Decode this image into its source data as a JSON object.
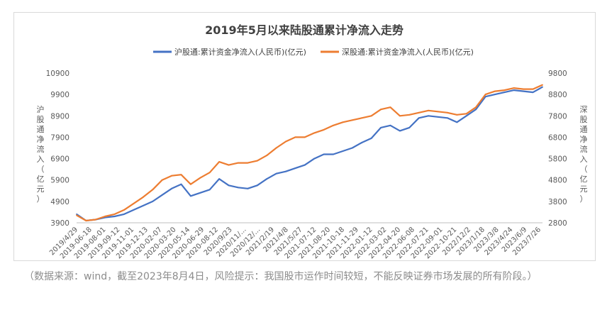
{
  "chart_data": {
    "type": "line",
    "title": "2019年5月以来陆股通累计净流入走势",
    "y_left_label": "沪股通净流入（亿元）",
    "y_right_label": "深股通净流入（亿元）",
    "y_left_ticks": [
      3900,
      4900,
      5900,
      6900,
      7900,
      8900,
      9900,
      10900
    ],
    "y_right_ticks": [
      2800,
      3800,
      4800,
      5800,
      6800,
      7800,
      8800,
      9800
    ],
    "y_left_range": [
      3900,
      10900
    ],
    "y_right_range": [
      2800,
      9800
    ],
    "x_tick_labels": [
      "2019/4/29",
      "2019-06-18",
      "2019-08-01",
      "2019-09-12",
      "2019-11-01",
      "2019-12-13",
      "2020-02-07",
      "2020-03-20",
      "2020-05-14",
      "2020-06-29",
      "2020-08-12",
      "2020/9/23",
      "2020/11/...",
      "2020/12/...",
      "2021/2/19",
      "2021/4/8",
      "2021/5/27",
      "2021-07-12",
      "2021-08-20",
      "2021-10-18",
      "2021-11-29",
      "2022-01-12",
      "2022-03-02",
      "2022-04-20",
      "2022-06-08",
      "2022-07-21",
      "2022-09-01",
      "2022-10-21",
      "2022/12/2",
      "2023/1/18",
      "2023/3/8",
      "2023/4/24",
      "2023/6/9",
      "2023/7/26"
    ],
    "grid": false,
    "legend_position": "top",
    "series": [
      {
        "name": "沪股通:累计资金净流入(人民币)(亿元)",
        "axis": "left",
        "color": "#4472c4",
        "values": [
          4300,
          4000,
          4050,
          4150,
          4200,
          4300,
          4500,
          4700,
          4900,
          5200,
          5500,
          5700,
          5150,
          5300,
          5450,
          5950,
          5650,
          5550,
          5500,
          5650,
          5950,
          6200,
          6300,
          6450,
          6600,
          6900,
          7100,
          7100,
          7250,
          7400,
          7650,
          7850,
          8350,
          8450,
          8200,
          8350,
          8800,
          8900,
          8850,
          8800,
          8600,
          8900,
          9200,
          9800,
          9900,
          10000,
          10100,
          10050,
          10000,
          10250
        ]
      },
      {
        "name": "深股通:累计资金净流入(人民币)(亿元)",
        "axis": "right",
        "color": "#ed7d31",
        "values": [
          3150,
          2900,
          2950,
          3100,
          3200,
          3400,
          3700,
          4000,
          4350,
          4800,
          5000,
          5050,
          4600,
          4900,
          5150,
          5650,
          5500,
          5600,
          5600,
          5700,
          5950,
          6300,
          6600,
          6800,
          6800,
          7000,
          7150,
          7350,
          7500,
          7600,
          7700,
          7800,
          8100,
          8200,
          7800,
          7850,
          7950,
          8050,
          8000,
          7950,
          7850,
          7900,
          8200,
          8800,
          8950,
          9000,
          9100,
          9050,
          9050,
          9250
        ]
      }
    ]
  },
  "footnote": "（数据来源：wind，截至2023年8月4日，风险提示：我国股市运作时间较短，不能反映证券市场发展的所有阶段。）",
  "colors": {
    "blue": "#4472c4",
    "orange": "#ed7d31"
  }
}
